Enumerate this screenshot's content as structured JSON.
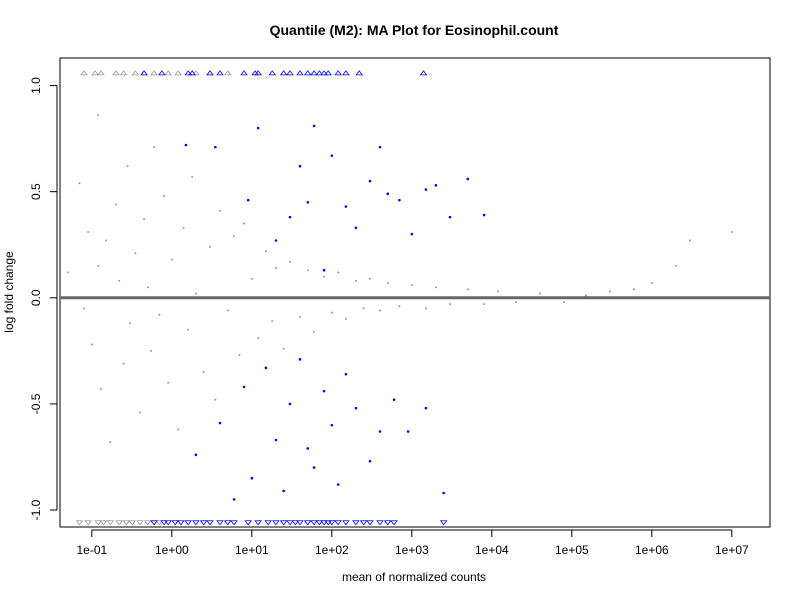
{
  "chart_data": {
    "type": "scatter",
    "title": "Quantile (M2): MA Plot for Eosinophil.count",
    "xlabel": "mean of normalized counts",
    "ylabel": "log fold change",
    "x_scale": "log10",
    "xlim": [
      0.04,
      30000000
    ],
    "ylim": [
      -1.08,
      1.13
    ],
    "x_ticks": [
      {
        "value": 0.1,
        "label": "1e-01"
      },
      {
        "value": 1,
        "label": "1e+00"
      },
      {
        "value": 10,
        "label": "1e+01"
      },
      {
        "value": 100,
        "label": "1e+02"
      },
      {
        "value": 1000,
        "label": "1e+03"
      },
      {
        "value": 10000,
        "label": "1e+04"
      },
      {
        "value": 100000,
        "label": "1e+05"
      },
      {
        "value": 1000000,
        "label": "1e+06"
      },
      {
        "value": 10000000,
        "label": "1e+07"
      }
    ],
    "y_ticks": [
      {
        "value": 1.0,
        "label": "1.0"
      },
      {
        "value": 0.5,
        "label": "0.5"
      },
      {
        "value": 0.0,
        "label": "0.0"
      },
      {
        "value": -0.5,
        "label": "-0.5"
      },
      {
        "value": -1.0,
        "label": "-1.0"
      }
    ],
    "reference_line": {
      "y": 0,
      "color": "#666666"
    },
    "grid": false,
    "colors": {
      "not_significant": "#999999",
      "significant": "#0000ff",
      "frame": "#000000"
    },
    "series": [
      {
        "color": "#999999",
        "shape": "dot",
        "points": [
          [
            0.05,
            0.12
          ],
          [
            0.07,
            0.54
          ],
          [
            0.08,
            -0.05
          ],
          [
            0.09,
            0.31
          ],
          [
            0.1,
            -0.22
          ],
          [
            0.12,
            0.86
          ],
          [
            0.12,
            0.15
          ],
          [
            0.13,
            -0.43
          ],
          [
            0.15,
            0.27
          ],
          [
            0.17,
            -0.68
          ],
          [
            0.2,
            0.44
          ],
          [
            0.22,
            0.08
          ],
          [
            0.25,
            -0.31
          ],
          [
            0.28,
            0.62
          ],
          [
            0.3,
            -0.12
          ],
          [
            0.35,
            0.21
          ],
          [
            0.4,
            -0.54
          ],
          [
            0.45,
            0.37
          ],
          [
            0.5,
            0.05
          ],
          [
            0.55,
            -0.25
          ],
          [
            0.6,
            0.71
          ],
          [
            0.7,
            -0.08
          ],
          [
            0.8,
            0.48
          ],
          [
            0.9,
            -0.4
          ],
          [
            1.0,
            0.18
          ],
          [
            1.2,
            -0.62
          ],
          [
            1.4,
            0.33
          ],
          [
            1.6,
            -0.15
          ],
          [
            1.8,
            0.57
          ],
          [
            2.0,
            0.02
          ],
          [
            2.5,
            -0.35
          ],
          [
            3.0,
            0.24
          ],
          [
            3.5,
            -0.48
          ],
          [
            4.0,
            0.41
          ],
          [
            5.0,
            -0.06
          ],
          [
            6.0,
            0.29
          ],
          [
            7.0,
            -0.27
          ],
          [
            8.0,
            0.35
          ],
          [
            10,
            0.09
          ],
          [
            12,
            -0.19
          ],
          [
            15,
            0.22
          ],
          [
            18,
            -0.11
          ],
          [
            20,
            0.14
          ],
          [
            25,
            -0.24
          ],
          [
            30,
            0.17
          ],
          [
            40,
            -0.09
          ],
          [
            50,
            0.13
          ],
          [
            60,
            -0.16
          ],
          [
            80,
            0.1
          ],
          [
            100,
            -0.07
          ],
          [
            120,
            0.12
          ],
          [
            150,
            -0.1
          ],
          [
            200,
            0.08
          ],
          [
            250,
            -0.05
          ],
          [
            300,
            0.09
          ],
          [
            400,
            -0.06
          ],
          [
            500,
            0.07
          ],
          [
            700,
            -0.04
          ],
          [
            1000,
            0.06
          ],
          [
            1500,
            -0.05
          ],
          [
            2000,
            0.05
          ],
          [
            3000,
            -0.03
          ],
          [
            5000,
            0.04
          ],
          [
            8000,
            -0.03
          ],
          [
            12000,
            0.03
          ],
          [
            20000,
            -0.02
          ],
          [
            40000,
            0.02
          ],
          [
            80000,
            -0.02
          ],
          [
            150000,
            0.01
          ],
          [
            300000,
            0.03
          ],
          [
            600000,
            0.04
          ],
          [
            1000000,
            0.07
          ],
          [
            2000000,
            0.15
          ],
          [
            3000000,
            0.27
          ],
          [
            10000000,
            0.31
          ]
        ]
      },
      {
        "color": "#0000ff",
        "shape": "dot",
        "points": [
          [
            1.5,
            0.72
          ],
          [
            3.5,
            0.71
          ],
          [
            9,
            0.46
          ],
          [
            12,
            0.8
          ],
          [
            20,
            0.27
          ],
          [
            30,
            0.38
          ],
          [
            40,
            0.62
          ],
          [
            50,
            0.45
          ],
          [
            60,
            0.81
          ],
          [
            80,
            0.13
          ],
          [
            100,
            0.67
          ],
          [
            150,
            0.43
          ],
          [
            200,
            0.33
          ],
          [
            300,
            0.55
          ],
          [
            400,
            0.71
          ],
          [
            500,
            0.49
          ],
          [
            700,
            0.46
          ],
          [
            1000,
            0.3
          ],
          [
            1500,
            0.51
          ],
          [
            2000,
            0.53
          ],
          [
            3000,
            0.38
          ],
          [
            5000,
            0.56
          ],
          [
            8000,
            0.39
          ],
          [
            2,
            -0.74
          ],
          [
            4,
            -0.59
          ],
          [
            6,
            -0.95
          ],
          [
            8,
            -0.42
          ],
          [
            10,
            -0.85
          ],
          [
            15,
            -0.33
          ],
          [
            20,
            -0.67
          ],
          [
            25,
            -0.91
          ],
          [
            30,
            -0.5
          ],
          [
            40,
            -0.29
          ],
          [
            50,
            -0.71
          ],
          [
            60,
            -0.8
          ],
          [
            80,
            -0.44
          ],
          [
            100,
            -0.6
          ],
          [
            120,
            -0.88
          ],
          [
            150,
            -0.36
          ],
          [
            200,
            -0.52
          ],
          [
            300,
            -0.77
          ],
          [
            400,
            -0.63
          ],
          [
            600,
            -0.48
          ],
          [
            900,
            -0.63
          ],
          [
            1500,
            -0.52
          ],
          [
            2500,
            -0.92
          ]
        ]
      }
    ],
    "clipped_markers": {
      "top": {
        "y": 1.06,
        "shape": "triangle-up",
        "gray_x": [
          0.08,
          0.11,
          0.13,
          0.2,
          0.25,
          0.35,
          0.45,
          0.6,
          0.9,
          1.2,
          2,
          3,
          5
        ],
        "blue_x": [
          0.45,
          0.75,
          1.6,
          1.8,
          3,
          4,
          8,
          11,
          12,
          18,
          25,
          30,
          40,
          50,
          60,
          70,
          80,
          90,
          120,
          150,
          220,
          1400
        ]
      },
      "bottom": {
        "y": -1.06,
        "shape": "triangle-down",
        "gray_x": [
          0.07,
          0.09,
          0.12,
          0.14,
          0.17,
          0.22,
          0.27,
          0.32,
          0.4,
          0.5,
          0.6,
          0.7
        ],
        "blue_x": [
          0.6,
          0.8,
          0.9,
          1.1,
          1.3,
          1.6,
          2,
          2.5,
          3,
          4,
          5,
          6,
          9,
          12,
          16,
          20,
          25,
          30,
          35,
          40,
          50,
          60,
          70,
          80,
          90,
          100,
          120,
          150,
          200,
          250,
          300,
          400,
          500,
          600,
          2500
        ]
      }
    }
  }
}
